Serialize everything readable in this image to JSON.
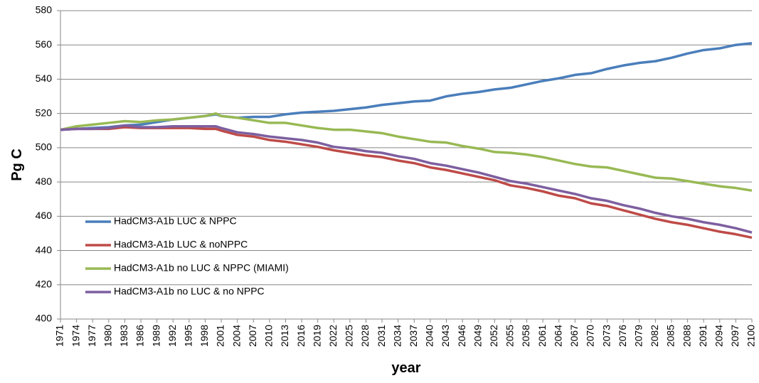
{
  "chart_data": {
    "type": "line",
    "y_label": "Pg C",
    "x_label": "year",
    "x": [
      1971,
      1974,
      1977,
      1980,
      1983,
      1986,
      1989,
      1992,
      1995,
      1998,
      2000,
      2001,
      2004,
      2007,
      2010,
      2013,
      2016,
      2019,
      2022,
      2025,
      2028,
      2031,
      2034,
      2037,
      2040,
      2043,
      2046,
      2049,
      2052,
      2055,
      2058,
      2061,
      2064,
      2067,
      2070,
      2073,
      2076,
      2079,
      2082,
      2085,
      2088,
      2091,
      2094,
      2097,
      2100
    ],
    "series": [
      {
        "name": "HadCM3-A1b LUC & NPPC",
        "color": "#4a7ebb",
        "values": [
          510.5,
          511,
          511.5,
          512,
          513,
          513.5,
          515,
          516.5,
          517.5,
          518.5,
          519.5,
          518.5,
          517.5,
          518,
          518,
          519.5,
          520.5,
          521,
          521.5,
          522.5,
          523.5,
          525,
          526,
          527,
          527.5,
          530,
          531.5,
          532.5,
          534,
          535,
          537,
          539,
          540.5,
          542.5,
          543.5,
          546,
          548,
          549.5,
          550.5,
          552.5,
          555,
          557,
          558,
          560,
          561
        ]
      },
      {
        "name": "HadCM3-A1b LUC & noNPPC",
        "color": "#be4b48",
        "values": [
          510.5,
          511,
          511,
          511,
          512,
          511.5,
          511.5,
          511.5,
          511.5,
          511,
          511,
          510,
          507.5,
          506.5,
          504.5,
          503.5,
          502,
          500.5,
          498.5,
          497,
          495.5,
          494.5,
          492.5,
          491,
          488.5,
          487,
          485,
          483,
          481,
          478,
          476.5,
          474.5,
          472,
          470.5,
          467.5,
          466,
          463.5,
          461,
          458.5,
          456.5,
          455,
          453,
          451,
          449.5,
          447.5
        ]
      },
      {
        "name": "HadCM3-A1b no LUC & NPPC (MIAMI)",
        "color": "#98b954",
        "values": [
          510.5,
          512.5,
          513.5,
          514.5,
          515.5,
          515,
          516,
          516.5,
          517.5,
          518.5,
          520,
          518.5,
          517.5,
          516,
          514.5,
          514.5,
          513,
          511.5,
          510.5,
          510.5,
          509.5,
          508.5,
          506.5,
          505,
          503.5,
          503,
          501,
          499.5,
          497.5,
          497,
          496,
          494.5,
          492.5,
          490.5,
          489,
          488.5,
          486.5,
          484.5,
          482.5,
          482,
          480.5,
          479,
          477.5,
          476.5,
          475
        ]
      },
      {
        "name": "HadCM3-A1b no LUC & no NPPC",
        "color": "#7d5fa0",
        "values": [
          510.5,
          511,
          511,
          511.5,
          513,
          512,
          512,
          512.5,
          512.5,
          512.5,
          512.5,
          511.5,
          509,
          508,
          506.5,
          505.5,
          504.5,
          503,
          500.5,
          499.5,
          498,
          497,
          495,
          493.5,
          491,
          489.5,
          487.5,
          485.5,
          483,
          480.5,
          479,
          477,
          475,
          473,
          470.5,
          469,
          466.5,
          464.5,
          462,
          460,
          458.5,
          456.5,
          455,
          453,
          450.5
        ]
      }
    ],
    "xlim": [
      1971,
      2100
    ],
    "xticks": [
      1971,
      1974,
      1977,
      1980,
      1983,
      1986,
      1989,
      1992,
      1995,
      1998,
      2001,
      2004,
      2007,
      2010,
      2013,
      2016,
      2019,
      2022,
      2025,
      2028,
      2031,
      2034,
      2037,
      2040,
      2043,
      2046,
      2049,
      2052,
      2055,
      2058,
      2061,
      2064,
      2067,
      2070,
      2073,
      2076,
      2079,
      2082,
      2085,
      2088,
      2091,
      2094,
      2097,
      2100
    ],
    "ylim": [
      400,
      580
    ],
    "yticks": [
      400,
      420,
      440,
      460,
      480,
      500,
      520,
      540,
      560,
      580
    ],
    "grid": true
  }
}
